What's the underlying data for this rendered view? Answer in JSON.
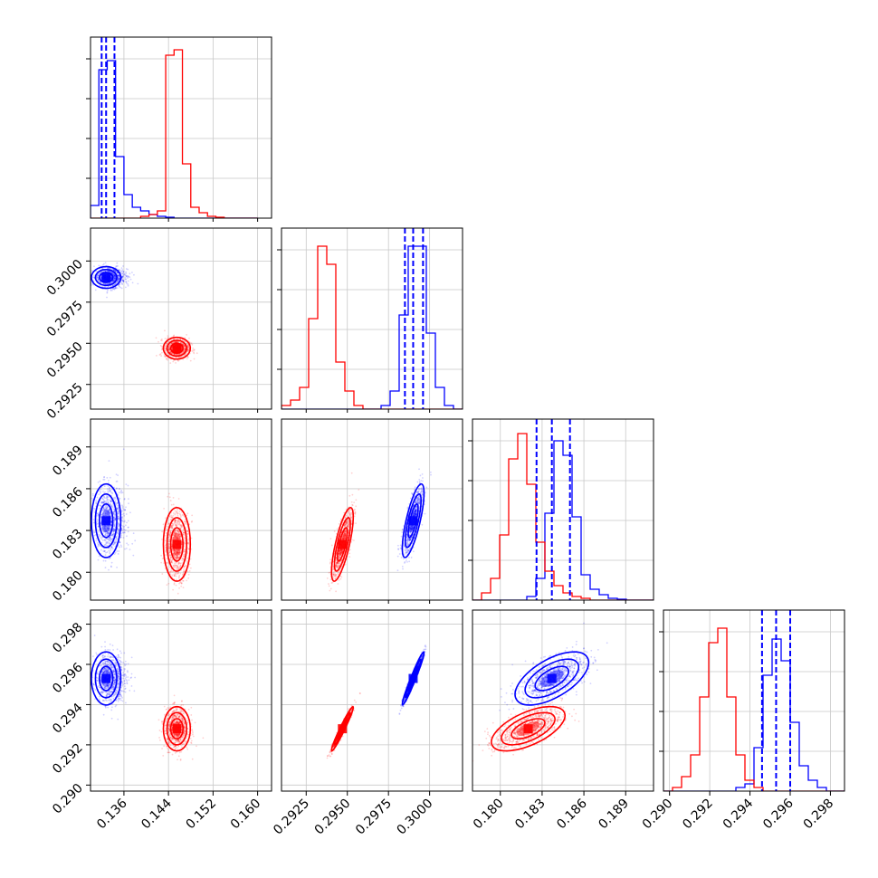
{
  "chart_data": {
    "type": "corner",
    "title": "",
    "grid": true,
    "colors": {
      "series_a": "#0000ff",
      "series_b": "#ff0000"
    },
    "parameters": [
      {
        "id": "p1",
        "label": "",
        "range": [
          0.13,
          0.1625
        ],
        "ticks": [
          "0.136",
          "0.144",
          "0.152",
          "0.160"
        ]
      },
      {
        "id": "p2",
        "label": "",
        "range": [
          0.291,
          0.302
        ],
        "ticks": [
          "0.2925",
          "0.2950",
          "0.2975",
          "0.3000"
        ]
      },
      {
        "id": "p3",
        "label": "",
        "range": [
          0.178,
          0.191
        ],
        "ticks": [
          "0.180",
          "0.183",
          "0.186",
          "0.189"
        ]
      },
      {
        "id": "p4",
        "label": "",
        "range": [
          0.2897,
          0.2987
        ],
        "ticks": [
          "0.290",
          "0.292",
          "0.294",
          "0.296",
          "0.298"
        ]
      }
    ],
    "series": [
      {
        "name": "",
        "color": "#0000ff",
        "mean": [
          0.1328,
          0.299,
          0.1837,
          0.2953
        ],
        "sigma": [
          0.0012,
          0.0003,
          0.0012,
          0.0006
        ],
        "quantile_lines": [
          [
            0.132,
            0.1328,
            0.1343
          ],
          [
            0.2985,
            0.299,
            0.2996
          ],
          [
            0.1826,
            0.1837,
            0.185
          ],
          [
            0.2946,
            0.2953,
            0.296
          ]
        ]
      },
      {
        "name": "",
        "color": "#ff0000",
        "mean": [
          0.1455,
          0.2947,
          0.182,
          0.2928
        ],
        "sigma": [
          0.0011,
          0.0003,
          0.0012,
          0.0005
        ],
        "quantile_lines": []
      }
    ],
    "histograms": {
      "p1": {
        "bins": [
          0.13,
          0.1315,
          0.133,
          0.1345,
          0.136,
          0.1375,
          0.139,
          0.1405,
          0.142,
          0.1435,
          0.145,
          0.1465,
          0.148,
          0.1495,
          0.151,
          0.1525,
          0.154,
          0.1555,
          0.157,
          0.1585
        ],
        "series_a": [
          0.07,
          0.82,
          0.87,
          0.34,
          0.13,
          0.06,
          0.04,
          0.02,
          0.01,
          0.005,
          0.0,
          0.0,
          0.0,
          0.0,
          0.0,
          0.0,
          0.0,
          0.0,
          0.0,
          0.0
        ],
        "series_b": [
          0.0,
          0.0,
          0.0,
          0.0,
          0.0,
          0.0,
          0.01,
          0.02,
          0.04,
          0.9,
          0.93,
          0.3,
          0.06,
          0.03,
          0.01,
          0.005,
          0.0,
          0.0,
          0.0,
          0.0
        ]
      },
      "p2": {
        "bins": [
          0.291,
          0.29155,
          0.2921,
          0.29265,
          0.2932,
          0.29375,
          0.2943,
          0.29485,
          0.2954,
          0.29595,
          0.2965,
          0.29705,
          0.2976,
          0.29815,
          0.2987,
          0.29925,
          0.2998,
          0.30035,
          0.3009,
          0.30145
        ],
        "series_a": [
          0.0,
          0.0,
          0.0,
          0.0,
          0.0,
          0.0,
          0.0,
          0.0,
          0.0,
          0.0,
          0.0,
          0.02,
          0.1,
          0.52,
          0.9,
          0.9,
          0.42,
          0.12,
          0.02,
          0.0
        ],
        "series_b": [
          0.02,
          0.05,
          0.12,
          0.5,
          0.9,
          0.8,
          0.26,
          0.1,
          0.02,
          0.0,
          0.0,
          0.0,
          0.0,
          0.0,
          0.0,
          0.0,
          0.0,
          0.0,
          0.0,
          0.0
        ]
      },
      "p3": {
        "bins": [
          0.178,
          0.17865,
          0.1793,
          0.17995,
          0.1806,
          0.18125,
          0.1819,
          0.18255,
          0.1832,
          0.18385,
          0.1845,
          0.18515,
          0.1858,
          0.18645,
          0.1871,
          0.18775,
          0.1884,
          0.18905,
          0.1897,
          0.19035
        ],
        "series_a": [
          0.0,
          0.0,
          0.0,
          0.0,
          0.0,
          0.0,
          0.02,
          0.12,
          0.48,
          0.88,
          0.8,
          0.46,
          0.14,
          0.06,
          0.03,
          0.01,
          0.005,
          0.0,
          0.0,
          0.0
        ],
        "series_b": [
          0.0,
          0.04,
          0.12,
          0.36,
          0.78,
          0.92,
          0.64,
          0.32,
          0.16,
          0.08,
          0.04,
          0.02,
          0.01,
          0.0,
          0.0,
          0.0,
          0.0,
          0.0,
          0.0,
          0.0
        ]
      },
      "p4": {
        "bins": [
          0.2897,
          0.29015,
          0.2906,
          0.29105,
          0.2915,
          0.29195,
          0.2924,
          0.29285,
          0.2933,
          0.29375,
          0.2942,
          0.29465,
          0.2951,
          0.29555,
          0.296,
          0.29645,
          0.2969,
          0.29735,
          0.2978,
          0.29825
        ],
        "series_a": [
          0.0,
          0.0,
          0.0,
          0.0,
          0.0,
          0.0,
          0.0,
          0.0,
          0.02,
          0.04,
          0.24,
          0.64,
          0.84,
          0.72,
          0.38,
          0.14,
          0.06,
          0.02,
          0.0,
          0.0
        ],
        "series_b": [
          0.0,
          0.02,
          0.08,
          0.2,
          0.52,
          0.82,
          0.9,
          0.52,
          0.2,
          0.06,
          0.02,
          0.0,
          0.0,
          0.0,
          0.0,
          0.0,
          0.0,
          0.0,
          0.0,
          0.0
        ]
      }
    }
  }
}
